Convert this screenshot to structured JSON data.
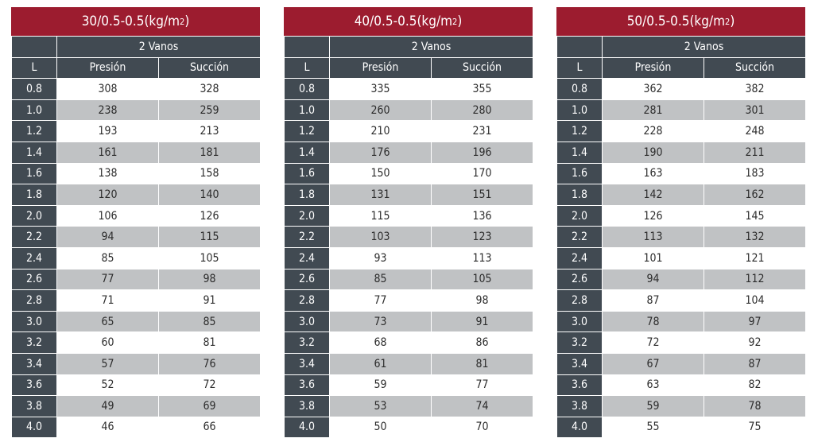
{
  "unit_sup": "2",
  "span_label": "2 Vanos",
  "headers": {
    "l": "L",
    "presion": "Presión",
    "succion": "Succión"
  },
  "l_values": [
    "0.8",
    "1.0",
    "1.2",
    "1.4",
    "1.6",
    "1.8",
    "2.0",
    "2.2",
    "2.4",
    "2.6",
    "2.8",
    "3.0",
    "3.2",
    "3.4",
    "3.6",
    "3.8",
    "4.0"
  ],
  "tables": [
    {
      "title_prefix": "30/0.5-0.5(kg/m",
      "title_suffix": ")",
      "presion": [
        "308",
        "238",
        "193",
        "161",
        "138",
        "120",
        "106",
        "94",
        "85",
        "77",
        "71",
        "65",
        "60",
        "57",
        "52",
        "49",
        "46"
      ],
      "succion": [
        "328",
        "259",
        "213",
        "181",
        "158",
        "140",
        "126",
        "115",
        "105",
        "98",
        "91",
        "85",
        "81",
        "76",
        "72",
        "69",
        "66"
      ]
    },
    {
      "title_prefix": "40/0.5-0.5(kg/m",
      "title_suffix": ")",
      "presion": [
        "335",
        "260",
        "210",
        "176",
        "150",
        "131",
        "115",
        "103",
        "93",
        "85",
        "77",
        "73",
        "68",
        "61",
        "59",
        "53",
        "50"
      ],
      "succion": [
        "355",
        "280",
        "231",
        "196",
        "170",
        "151",
        "136",
        "123",
        "113",
        "105",
        "98",
        "91",
        "86",
        "81",
        "77",
        "74",
        "70"
      ]
    },
    {
      "title_prefix": "50/0.5-0.5(kg/m",
      "title_suffix": ")",
      "presion": [
        "362",
        "281",
        "228",
        "190",
        "163",
        "142",
        "126",
        "113",
        "101",
        "94",
        "87",
        "78",
        "72",
        "67",
        "63",
        "59",
        "55"
      ],
      "succion": [
        "382",
        "301",
        "248",
        "211",
        "183",
        "162",
        "145",
        "132",
        "121",
        "112",
        "104",
        "97",
        "92",
        "87",
        "82",
        "78",
        "75"
      ]
    }
  ],
  "colors": {
    "title_bg": "#9c1c2f",
    "header_bg": "#414a52",
    "alt_row": "#c0c2c4"
  }
}
